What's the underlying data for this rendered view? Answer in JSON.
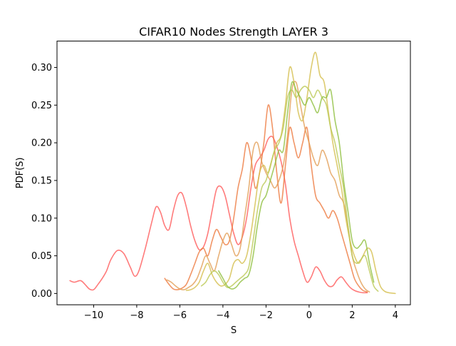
{
  "chart_data": {
    "type": "line",
    "title": "CIFAR10 Nodes Strength LAYER 3",
    "xlabel": "S",
    "ylabel": "PDF(S)",
    "xlim": [
      -11.7,
      4.7
    ],
    "ylim": [
      -0.015,
      0.335
    ],
    "xticks": [
      -10,
      -8,
      -6,
      -4,
      -2,
      0,
      2,
      4
    ],
    "xtick_labels": [
      "−10",
      "−8",
      "−6",
      "−4",
      "−2",
      "0",
      "2",
      "4"
    ],
    "yticks": [
      0.0,
      0.05,
      0.1,
      0.15,
      0.2,
      0.25,
      0.3
    ],
    "ytick_labels": [
      "0.00",
      "0.05",
      "0.10",
      "0.15",
      "0.20",
      "0.25",
      "0.30"
    ],
    "grid": false,
    "series": [
      {
        "color": "#ff5a5a",
        "x": [
          -11.1,
          -10.9,
          -10.6,
          -10.4,
          -10.2,
          -10.0,
          -9.8,
          -9.6,
          -9.4,
          -9.2,
          -8.9,
          -8.6,
          -8.3,
          -8.1,
          -7.9,
          -7.6,
          -7.3,
          -7.1,
          -6.9,
          -6.7,
          -6.5,
          -6.3,
          -6.1,
          -5.9,
          -5.7,
          -5.5,
          -5.3,
          -5.1,
          -4.9,
          -4.7,
          -4.5,
          -4.3,
          -4.1,
          -3.9,
          -3.7,
          -3.5,
          -3.3,
          -3.1,
          -2.9,
          -2.7,
          -2.5,
          -2.3,
          -2.1,
          -1.9,
          -1.7,
          -1.5,
          -1.3,
          -1.1,
          -0.9,
          -0.7,
          -0.5,
          -0.3,
          -0.1,
          0.1,
          0.3,
          0.5,
          0.7,
          0.9,
          1.1,
          1.3,
          1.5,
          1.7,
          1.9,
          2.1,
          2.3,
          2.5,
          2.7
        ],
        "y": [
          0.017,
          0.015,
          0.017,
          0.012,
          0.006,
          0.005,
          0.012,
          0.02,
          0.03,
          0.045,
          0.057,
          0.053,
          0.035,
          0.023,
          0.03,
          0.06,
          0.095,
          0.115,
          0.108,
          0.09,
          0.085,
          0.11,
          0.13,
          0.133,
          0.115,
          0.09,
          0.07,
          0.058,
          0.062,
          0.08,
          0.11,
          0.138,
          0.142,
          0.13,
          0.105,
          0.08,
          0.065,
          0.075,
          0.1,
          0.14,
          0.17,
          0.18,
          0.19,
          0.205,
          0.208,
          0.195,
          0.175,
          0.145,
          0.1,
          0.07,
          0.05,
          0.03,
          0.015,
          0.022,
          0.035,
          0.03,
          0.018,
          0.01,
          0.01,
          0.018,
          0.022,
          0.015,
          0.008,
          0.004,
          0.002,
          0.001,
          0.001
        ]
      },
      {
        "color": "#ee7a40",
        "x": [
          -6.7,
          -6.5,
          -6.3,
          -6.1,
          -5.9,
          -5.7,
          -5.5,
          -5.3,
          -5.1,
          -4.9,
          -4.7,
          -4.5,
          -4.3,
          -4.1,
          -3.9,
          -3.7,
          -3.5,
          -3.3,
          -3.1,
          -2.9,
          -2.7,
          -2.5,
          -2.3,
          -2.1,
          -1.9,
          -1.7,
          -1.5,
          -1.3,
          -1.1,
          -0.9,
          -0.7,
          -0.5,
          -0.3,
          -0.1,
          0.1,
          0.3,
          0.5,
          0.7,
          0.9,
          1.1,
          1.3,
          1.5,
          1.7,
          1.9,
          2.1,
          2.3,
          2.5,
          2.7
        ],
        "y": [
          0.02,
          0.012,
          0.006,
          0.005,
          0.007,
          0.012,
          0.025,
          0.04,
          0.055,
          0.06,
          0.05,
          0.07,
          0.085,
          0.075,
          0.065,
          0.07,
          0.1,
          0.14,
          0.165,
          0.2,
          0.18,
          0.14,
          0.16,
          0.2,
          0.25,
          0.22,
          0.16,
          0.12,
          0.17,
          0.22,
          0.2,
          0.18,
          0.2,
          0.22,
          0.17,
          0.13,
          0.12,
          0.11,
          0.1,
          0.11,
          0.1,
          0.08,
          0.06,
          0.04,
          0.02,
          0.01,
          0.004,
          0.002
        ]
      },
      {
        "color": "#e29e55",
        "x": [
          -6.6,
          -6.4,
          -6.2,
          -6.0,
          -5.8,
          -5.6,
          -5.4,
          -5.2,
          -5.0,
          -4.8,
          -4.6,
          -4.4,
          -4.2,
          -4.0,
          -3.8,
          -3.6,
          -3.4,
          -3.2,
          -3.0,
          -2.8,
          -2.6,
          -2.4,
          -2.2,
          -2.0,
          -1.8,
          -1.6,
          -1.4,
          -1.2,
          -1.0,
          -0.8,
          -0.6,
          -0.4,
          -0.2,
          0.0,
          0.2,
          0.4,
          0.6,
          0.8,
          1.0,
          1.2,
          1.4,
          1.6,
          1.8,
          2.0,
          2.2,
          2.4,
          2.6,
          2.8
        ],
        "y": [
          0.018,
          0.015,
          0.01,
          0.006,
          0.005,
          0.008,
          0.012,
          0.02,
          0.035,
          0.05,
          0.04,
          0.03,
          0.05,
          0.07,
          0.08,
          0.065,
          0.05,
          0.06,
          0.1,
          0.14,
          0.19,
          0.2,
          0.175,
          0.16,
          0.15,
          0.14,
          0.15,
          0.17,
          0.21,
          0.27,
          0.28,
          0.25,
          0.22,
          0.2,
          0.18,
          0.17,
          0.19,
          0.18,
          0.16,
          0.15,
          0.13,
          0.12,
          0.09,
          0.05,
          0.03,
          0.015,
          0.006,
          0.002
        ]
      },
      {
        "color": "#d4be4c",
        "x": [
          -5.7,
          -5.5,
          -5.3,
          -5.1,
          -4.9,
          -4.7,
          -4.5,
          -4.3,
          -4.1,
          -3.9,
          -3.7,
          -3.5,
          -3.3,
          -3.1,
          -2.9,
          -2.7,
          -2.5,
          -2.3,
          -2.1,
          -1.9,
          -1.7,
          -1.5,
          -1.3,
          -1.1,
          -0.9,
          -0.7,
          -0.5,
          -0.3,
          -0.1,
          0.1,
          0.3,
          0.5,
          0.7,
          0.9,
          1.1,
          1.3,
          1.5,
          1.7,
          1.9,
          2.1,
          2.3,
          2.5,
          2.7,
          2.9,
          3.1,
          3.3,
          3.5,
          3.7,
          4.0
        ],
        "y": [
          0.004,
          0.005,
          0.008,
          0.015,
          0.03,
          0.04,
          0.025,
          0.015,
          0.01,
          0.012,
          0.02,
          0.04,
          0.045,
          0.04,
          0.05,
          0.08,
          0.12,
          0.16,
          0.17,
          0.16,
          0.18,
          0.2,
          0.21,
          0.25,
          0.3,
          0.28,
          0.24,
          0.23,
          0.26,
          0.3,
          0.32,
          0.29,
          0.28,
          0.24,
          0.2,
          0.17,
          0.14,
          0.1,
          0.07,
          0.05,
          0.04,
          0.05,
          0.06,
          0.055,
          0.03,
          0.01,
          0.003,
          0.001,
          0.0
        ]
      },
      {
        "color": "#bcc955",
        "x": [
          -5.0,
          -4.8,
          -4.6,
          -4.4,
          -4.2,
          -4.0,
          -3.8,
          -3.6,
          -3.4,
          -3.2,
          -3.0,
          -2.8,
          -2.6,
          -2.4,
          -2.2,
          -2.0,
          -1.8,
          -1.6,
          -1.4,
          -1.2,
          -1.0,
          -0.8,
          -0.6,
          -0.4,
          -0.2,
          0.0,
          0.2,
          0.4,
          0.6,
          0.8,
          1.0,
          1.2,
          1.4,
          1.6,
          1.8,
          2.0,
          2.2,
          2.4,
          2.6,
          2.8,
          3.0,
          3.2
        ],
        "y": [
          0.01,
          0.015,
          0.025,
          0.03,
          0.025,
          0.015,
          0.008,
          0.01,
          0.015,
          0.02,
          0.025,
          0.035,
          0.07,
          0.11,
          0.14,
          0.15,
          0.17,
          0.19,
          0.2,
          0.22,
          0.26,
          0.27,
          0.26,
          0.27,
          0.275,
          0.27,
          0.26,
          0.27,
          0.26,
          0.25,
          0.22,
          0.2,
          0.17,
          0.14,
          0.09,
          0.05,
          0.04,
          0.045,
          0.05,
          0.03,
          0.01,
          0.003
        ]
      },
      {
        "color": "#8fbf3f",
        "x": [
          -4.2,
          -4.0,
          -3.8,
          -3.6,
          -3.4,
          -3.2,
          -3.0,
          -2.8,
          -2.6,
          -2.4,
          -2.2,
          -2.0,
          -1.8,
          -1.6,
          -1.4,
          -1.2,
          -1.0,
          -0.8,
          -0.6,
          -0.4,
          -0.2,
          0.0,
          0.2,
          0.4,
          0.6,
          0.8,
          1.0,
          1.2,
          1.4,
          1.6,
          1.8,
          2.0,
          2.2,
          2.4,
          2.6,
          2.8,
          3.0
        ],
        "y": [
          0.03,
          0.02,
          0.01,
          0.006,
          0.008,
          0.015,
          0.02,
          0.025,
          0.05,
          0.09,
          0.12,
          0.13,
          0.15,
          0.17,
          0.19,
          0.19,
          0.24,
          0.28,
          0.27,
          0.26,
          0.25,
          0.26,
          0.25,
          0.24,
          0.26,
          0.26,
          0.27,
          0.23,
          0.2,
          0.15,
          0.11,
          0.07,
          0.06,
          0.065,
          0.07,
          0.04,
          0.015
        ]
      }
    ]
  }
}
